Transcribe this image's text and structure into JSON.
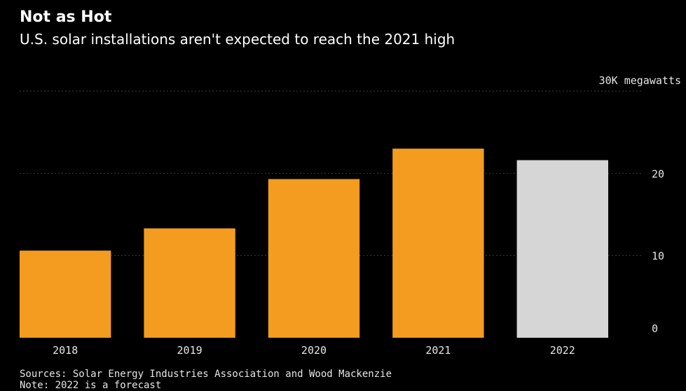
{
  "chart_data": {
    "type": "bar",
    "title": "Not as Hot",
    "subtitle": "U.S. solar installations aren't expected to reach the 2021 high",
    "unit_label": "30K megawatts",
    "categories": [
      "2018",
      "2019",
      "2020",
      "2021",
      "2022"
    ],
    "values": [
      10.6,
      13.3,
      19.3,
      23.0,
      21.6
    ],
    "forecast": [
      false,
      false,
      false,
      false,
      true
    ],
    "ylim": [
      0,
      30
    ],
    "yticks": [
      "0",
      "10",
      "20"
    ],
    "grid": true,
    "colors": {
      "actual": "#f39c1f",
      "forecast": "#d6d6d6",
      "background": "#000000",
      "grid": "#3a3a3a"
    },
    "source": "Sources: Solar Energy Industries Association and Wood Mackenzie",
    "note": "Note: 2022 is a forecast"
  }
}
